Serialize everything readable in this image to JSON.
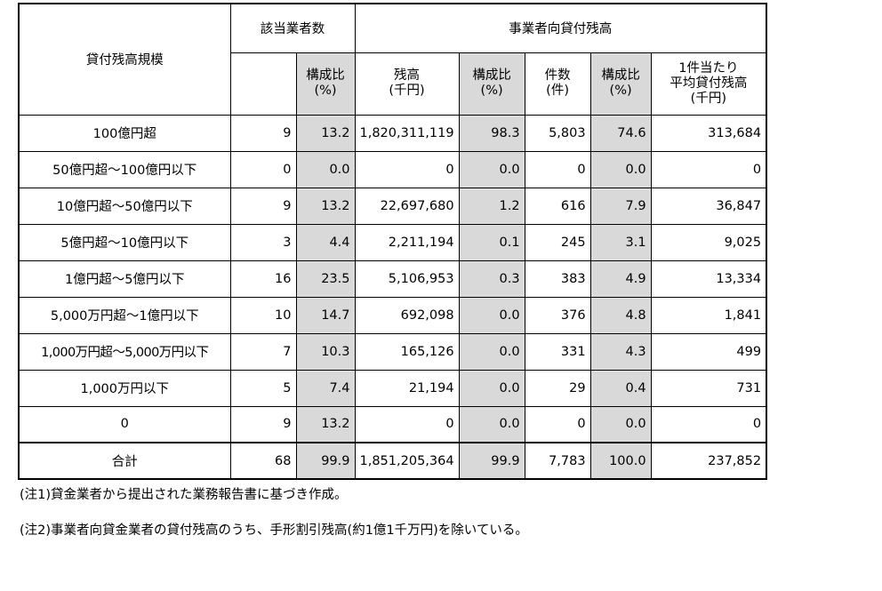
{
  "header": {
    "scale_label": "貸付残高規模",
    "companies_label": "該当業者数",
    "business_loans_label": "事業者向貸付残高",
    "ratio_line1": "構成比",
    "ratio_line2": "(%)",
    "balance_line1": "残高",
    "balance_line2": "(千円)",
    "count_line1": "件数",
    "count_line2": "(件)",
    "avg_line1": "1件当たり",
    "avg_line2": "平均貸付残高",
    "avg_line3": "(千円)"
  },
  "rows": [
    {
      "scale": "100億円超",
      "companies": "9",
      "ratio1": "13.2",
      "balance": "1,820,311,119",
      "ratio2": "98.3",
      "count": "5,803",
      "ratio3": "74.6",
      "avg": "313,684"
    },
    {
      "scale": "50億円超～100億円以下",
      "companies": "0",
      "ratio1": "0.0",
      "balance": "0",
      "ratio2": "0.0",
      "count": "0",
      "ratio3": "0.0",
      "avg": "0"
    },
    {
      "scale": "10億円超～50億円以下",
      "companies": "9",
      "ratio1": "13.2",
      "balance": "22,697,680",
      "ratio2": "1.2",
      "count": "616",
      "ratio3": "7.9",
      "avg": "36,847"
    },
    {
      "scale": "5億円超～10億円以下",
      "companies": "3",
      "ratio1": "4.4",
      "balance": "2,211,194",
      "ratio2": "0.1",
      "count": "245",
      "ratio3": "3.1",
      "avg": "9,025"
    },
    {
      "scale": "1億円超～5億円以下",
      "companies": "16",
      "ratio1": "23.5",
      "balance": "5,106,953",
      "ratio2": "0.3",
      "count": "383",
      "ratio3": "4.9",
      "avg": "13,334"
    },
    {
      "scale": "5,000万円超～1億円以下",
      "companies": "10",
      "ratio1": "14.7",
      "balance": "692,098",
      "ratio2": "0.0",
      "count": "376",
      "ratio3": "4.8",
      "avg": "1,841"
    },
    {
      "scale": "1,000万円超～5,000万円以下",
      "companies": "7",
      "ratio1": "10.3",
      "balance": "165,126",
      "ratio2": "0.0",
      "count": "331",
      "ratio3": "4.3",
      "avg": "499"
    },
    {
      "scale": "1,000万円以下",
      "companies": "5",
      "ratio1": "7.4",
      "balance": "21,194",
      "ratio2": "0.0",
      "count": "29",
      "ratio3": "0.4",
      "avg": "731"
    },
    {
      "scale": "0",
      "companies": "9",
      "ratio1": "13.2",
      "balance": "0",
      "ratio2": "0.0",
      "count": "0",
      "ratio3": "0.0",
      "avg": "0"
    }
  ],
  "total": {
    "scale": "合計",
    "companies": "68",
    "ratio1": "99.9",
    "balance": "1,851,205,364",
    "ratio2": "99.9",
    "count": "7,783",
    "ratio3": "100.0",
    "avg": "237,852"
  },
  "notes": [
    "(注1)貸金業者から提出された業務報告書に基づき作成。",
    "(注2)事業者向貸金業者の貸付残高のうち、手形割引残高(約1億1千万円)を除いている。"
  ],
  "colors": {
    "shaded": "#d9d9d9",
    "border": "#000000"
  }
}
